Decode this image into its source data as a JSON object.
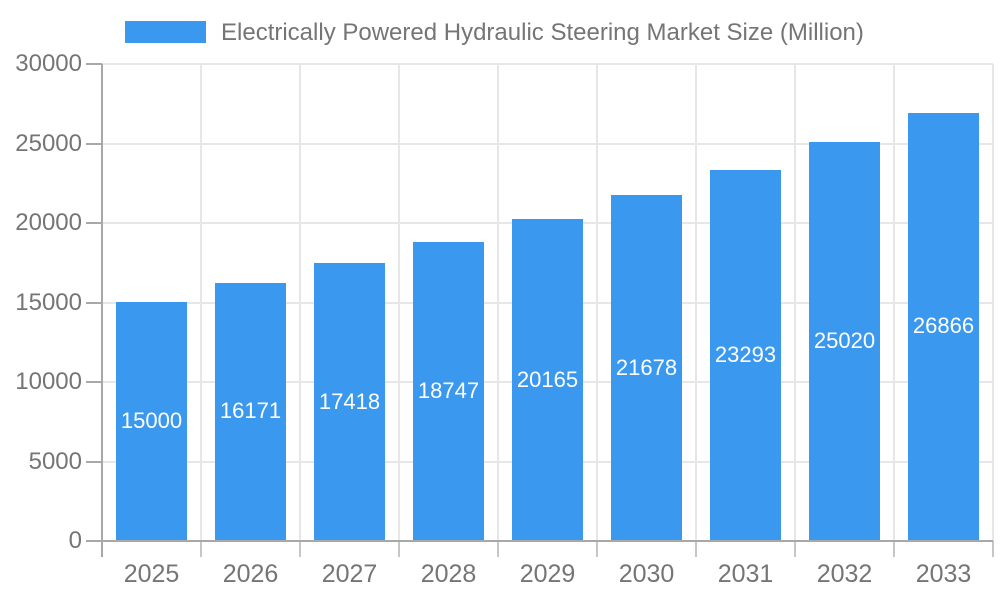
{
  "chart_data": {
    "type": "bar",
    "title": "Electrically Powered Hydraulic Steering Market Size (Million)",
    "categories": [
      "2025",
      "2026",
      "2027",
      "2028",
      "2029",
      "2030",
      "2031",
      "2032",
      "2033"
    ],
    "values": [
      15000,
      16171,
      17418,
      18747,
      20165,
      21678,
      23293,
      25020,
      26866
    ],
    "xlabel": "",
    "ylabel": "",
    "ylim": [
      0,
      30000
    ],
    "yticks": [
      0,
      5000,
      10000,
      15000,
      20000,
      25000,
      30000
    ],
    "grid": true,
    "legend_position": "top",
    "value_labels_position": "inside-middle",
    "colors": {
      "bar": "#3A99EE",
      "grid": "#E7E7E7",
      "axis": "#A8A8A8",
      "tick": "#C6C6C6",
      "text": "#757575",
      "value_label": "#FFFFFF",
      "background": "#FFFFFF"
    }
  }
}
